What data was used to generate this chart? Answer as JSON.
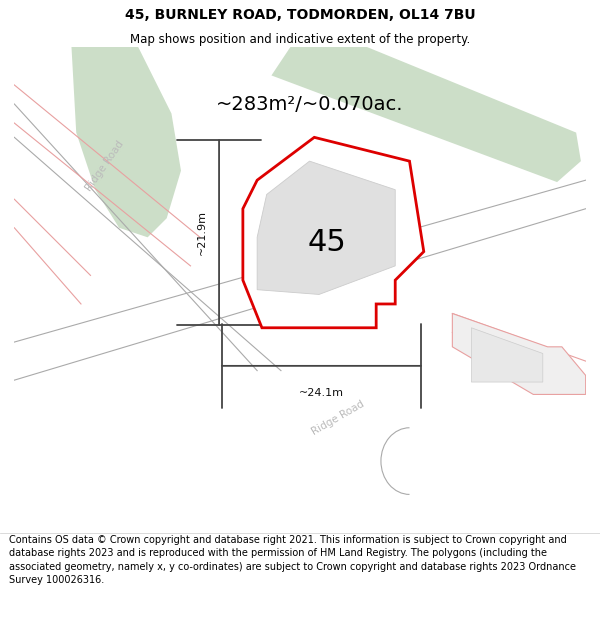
{
  "title": "45, BURNLEY ROAD, TODMORDEN, OL14 7BU",
  "subtitle": "Map shows position and indicative extent of the property.",
  "area_label": "~283m²/~0.070ac.",
  "number_label": "45",
  "width_label": "~24.1m",
  "height_label": "~21.9m",
  "footer": "Contains OS data © Crown copyright and database right 2021. This information is subject to Crown copyright and database rights 2023 and is reproduced with the permission of HM Land Registry. The polygons (including the associated geometry, namely x, y co-ordinates) are subject to Crown copyright and database rights 2023 Ordnance Survey 100026316.",
  "green_color": "#ccdec8",
  "road_gray": "#aaaaaa",
  "road_label_color": "#bbbbbb",
  "red_bound": "#e8a0a0",
  "prop_red": "#dd0000",
  "build_gray": "#e0e0e0",
  "build_edge": "#cccccc",
  "meas_color": "#444444",
  "title_fontsize": 10,
  "subtitle_fontsize": 8.5,
  "area_fontsize": 14,
  "num_fontsize": 22,
  "meas_fontsize": 8,
  "road_label_fontsize": 7.5,
  "footer_fontsize": 7
}
